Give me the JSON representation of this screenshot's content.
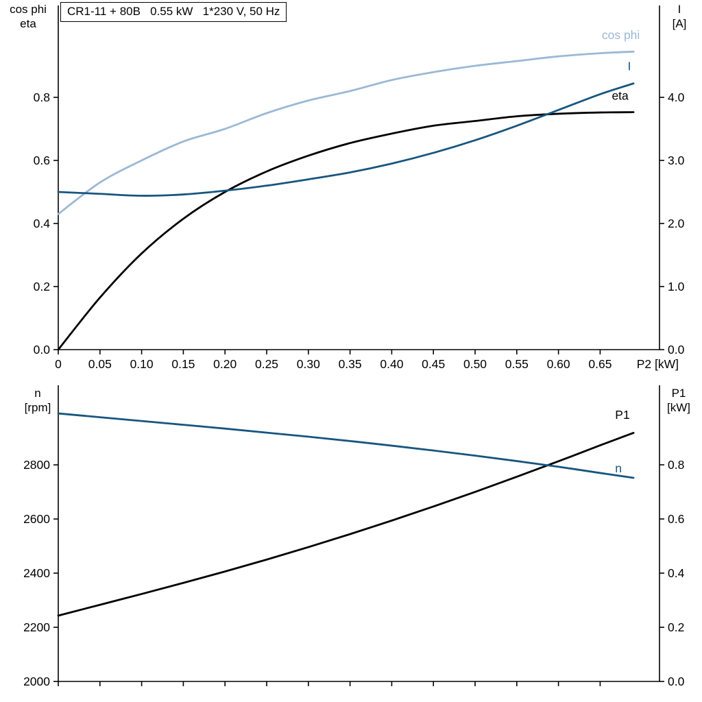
{
  "title_box": "CR1-11 + 80B   0.55 kW   1*230 V, 50 Hz",
  "chart_data": [
    {
      "type": "line",
      "title": "CR1-11 + 80B   0.55 kW   1*230 V, 50 Hz",
      "x": [
        0,
        0.05,
        0.1,
        0.15,
        0.2,
        0.25,
        0.3,
        0.35,
        0.4,
        0.45,
        0.5,
        0.55,
        0.6,
        0.65,
        0.69
      ],
      "x_axis": {
        "min": 0,
        "max": 0.7212,
        "end_label": "P2 [kW]",
        "ticks": [
          {
            "v": 0,
            "t": "0"
          },
          {
            "v": 0.05,
            "t": "0.05"
          },
          {
            "v": 0.1,
            "t": "0.10"
          },
          {
            "v": 0.15,
            "t": "0.15"
          },
          {
            "v": 0.2,
            "t": "0.20"
          },
          {
            "v": 0.25,
            "t": "0.25"
          },
          {
            "v": 0.3,
            "t": "0.30"
          },
          {
            "v": 0.35,
            "t": "0.35"
          },
          {
            "v": 0.4,
            "t": "0.40"
          },
          {
            "v": 0.45,
            "t": "0.45"
          },
          {
            "v": 0.5,
            "t": "0.50"
          },
          {
            "v": 0.55,
            "t": "0.55"
          },
          {
            "v": 0.6,
            "t": "0.60"
          },
          {
            "v": 0.65,
            "t": "0.65"
          }
        ]
      },
      "left_axis": {
        "label": [
          "cos phi",
          "eta"
        ],
        "min": 0,
        "max": 1.0913,
        "ticks": [
          {
            "v": 0.0,
            "t": "0.0"
          },
          {
            "v": 0.2,
            "t": "0.2"
          },
          {
            "v": 0.4,
            "t": "0.4"
          },
          {
            "v": 0.6,
            "t": "0.6"
          },
          {
            "v": 0.8,
            "t": "0.8"
          }
        ]
      },
      "right_axis": {
        "label": [
          "I",
          "[A]"
        ],
        "min": 0,
        "max": 5.4565,
        "ticks": [
          {
            "v": 0.0,
            "t": "0.0"
          },
          {
            "v": 1.0,
            "t": "1.0"
          },
          {
            "v": 2.0,
            "t": "2.0"
          },
          {
            "v": 3.0,
            "t": "3.0"
          },
          {
            "v": 4.0,
            "t": "4.0"
          }
        ]
      },
      "series": [
        {
          "name": "cos phi",
          "axis": "left",
          "color": "#9bb8d5",
          "width": 2.8,
          "values": [
            0.43,
            0.53,
            0.6,
            0.66,
            0.7,
            0.75,
            0.79,
            0.82,
            0.855,
            0.88,
            0.9,
            0.915,
            0.93,
            0.94,
            0.945
          ],
          "label": {
            "text": "cos phi",
            "x": 0.652,
            "y": 0.985
          }
        },
        {
          "name": "eta",
          "axis": "left",
          "color": "#000000",
          "width": 2.8,
          "values": [
            0.0,
            0.165,
            0.305,
            0.415,
            0.5,
            0.565,
            0.615,
            0.655,
            0.685,
            0.71,
            0.725,
            0.74,
            0.748,
            0.752,
            0.753
          ],
          "label": {
            "text": "eta",
            "x": 0.664,
            "y": 0.792
          }
        },
        {
          "name": "I",
          "axis": "right",
          "color": "#17557f",
          "width": 2.8,
          "values": [
            2.5,
            2.47,
            2.44,
            2.46,
            2.52,
            2.6,
            2.7,
            2.81,
            2.95,
            3.12,
            3.32,
            3.55,
            3.8,
            4.05,
            4.22
          ],
          "label": {
            "text": "I",
            "x": 0.683,
            "y": 4.43
          }
        }
      ]
    },
    {
      "type": "line",
      "x": [
        0,
        0.05,
        0.1,
        0.15,
        0.2,
        0.25,
        0.3,
        0.35,
        0.4,
        0.45,
        0.5,
        0.55,
        0.6,
        0.65,
        0.69
      ],
      "x_axis": {
        "min": 0,
        "max": 0.7212,
        "end_label": "",
        "ticks": [
          {
            "v": 0,
            "t": ""
          },
          {
            "v": 0.05,
            "t": ""
          },
          {
            "v": 0.1,
            "t": ""
          },
          {
            "v": 0.15,
            "t": ""
          },
          {
            "v": 0.2,
            "t": ""
          },
          {
            "v": 0.25,
            "t": ""
          },
          {
            "v": 0.3,
            "t": ""
          },
          {
            "v": 0.35,
            "t": ""
          },
          {
            "v": 0.4,
            "t": ""
          },
          {
            "v": 0.45,
            "t": ""
          },
          {
            "v": 0.5,
            "t": ""
          },
          {
            "v": 0.55,
            "t": ""
          },
          {
            "v": 0.6,
            "t": ""
          },
          {
            "v": 0.65,
            "t": ""
          }
        ]
      },
      "left_axis": {
        "label": [
          "n",
          "[rpm]"
        ],
        "min": 2000,
        "max": 3094,
        "ticks": [
          {
            "v": 2000,
            "t": "2000"
          },
          {
            "v": 2200,
            "t": "2200"
          },
          {
            "v": 2400,
            "t": "2400"
          },
          {
            "v": 2600,
            "t": "2600"
          },
          {
            "v": 2800,
            "t": "2800"
          }
        ]
      },
      "right_axis": {
        "label": [
          "P1",
          "[kW]"
        ],
        "min": 0,
        "max": 1.0937,
        "ticks": [
          {
            "v": 0.0,
            "t": "0.0"
          },
          {
            "v": 0.2,
            "t": "0.2"
          },
          {
            "v": 0.4,
            "t": "0.4"
          },
          {
            "v": 0.6,
            "t": "0.6"
          },
          {
            "v": 0.8,
            "t": "0.8"
          }
        ]
      },
      "series": [
        {
          "name": "P1",
          "axis": "right",
          "color": "#000000",
          "width": 2.8,
          "values": [
            0.243,
            0.283,
            0.323,
            0.364,
            0.406,
            0.45,
            0.496,
            0.544,
            0.594,
            0.646,
            0.7,
            0.756,
            0.813,
            0.872,
            0.918
          ],
          "label": {
            "text": "P1",
            "x": 0.668,
            "y": 0.97
          }
        },
        {
          "name": "n",
          "axis": "left",
          "color": "#17557f",
          "width": 2.8,
          "values": [
            2990,
            2976,
            2962,
            2948,
            2934,
            2919,
            2904,
            2888,
            2871,
            2853,
            2834,
            2814,
            2793,
            2770,
            2752
          ],
          "label": {
            "text": "n",
            "x": 0.668,
            "y": 2772
          }
        }
      ]
    }
  ]
}
